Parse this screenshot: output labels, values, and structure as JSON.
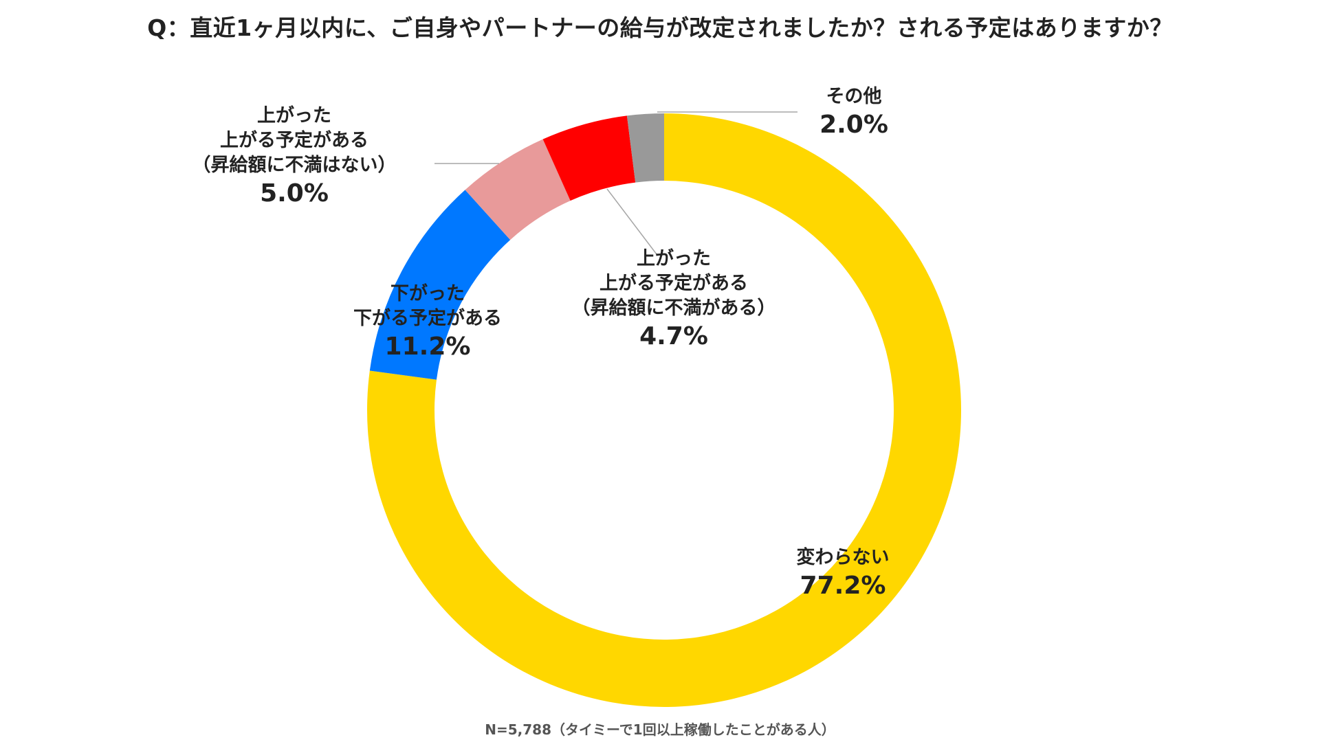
{
  "page": {
    "question": "Q：直近1ヶ月以内に、ご自身やパートナーの給与が改定されましたか？される予定はありますか？",
    "footnote": "N=5,788（タイミーで1回以上稼働したことがある人）"
  },
  "chart_data": {
    "type": "pie",
    "style": "donut",
    "title": "Q：直近1ヶ月以内に、ご自身やパートナーの給与が改定されましたか？される予定はありますか？",
    "unit": "%",
    "slices": [
      {
        "name": "変わらない",
        "lines": [
          "変わらない"
        ],
        "value": 77.2,
        "label": "77.2%",
        "color": "#FFD700"
      },
      {
        "name": "下がった・下がる予定がある",
        "lines": [
          "下がった",
          "下がる予定がある"
        ],
        "value": 11.2,
        "label": "11.2%",
        "color": "#0078FF"
      },
      {
        "name": "上がった・上がる予定がある（昇給額に不満はない）",
        "lines": [
          "上がった",
          "上がる予定がある",
          "（昇給額に不満はない）"
        ],
        "value": 5.0,
        "label": "5.0%",
        "color": "#E89A9A"
      },
      {
        "name": "上がった・上がる予定がある（昇給額に不満がある）",
        "lines": [
          "上がった",
          "上がる予定がある",
          "（昇給額に不満がある）"
        ],
        "value": 4.7,
        "label": "4.7%",
        "color": "#FF0000"
      },
      {
        "name": "その他",
        "lines": [
          "その他"
        ],
        "value": 2.0,
        "label": "2.0%",
        "color": "#999999"
      }
    ]
  }
}
